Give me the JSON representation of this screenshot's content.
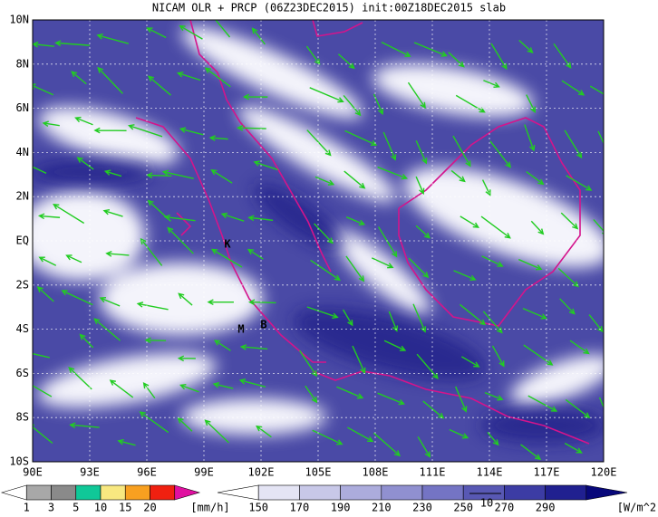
{
  "title": "NICAM OLR + PRCP (06Z23DEC2015) init:00Z18DEC2015 slab",
  "map": {
    "lat_labels": [
      "10N",
      "8N",
      "6N",
      "4N",
      "2N",
      "EQ",
      "2S",
      "4S",
      "6S",
      "8S",
      "10S"
    ],
    "lon_labels": [
      "90E",
      "93E",
      "96E",
      "99E",
      "102E",
      "105E",
      "108E",
      "111E",
      "114E",
      "117E",
      "120E"
    ],
    "places": [
      "K",
      "M",
      "B"
    ]
  },
  "legend": {
    "precip": {
      "labels": [
        1,
        3,
        5,
        10,
        15,
        20
      ],
      "unit": "[mm/h]"
    },
    "olr": {
      "labels": [
        150,
        170,
        190,
        210,
        230,
        250,
        270,
        290
      ],
      "unit": "[W/m^2]"
    }
  },
  "vector_reference": "10"
}
